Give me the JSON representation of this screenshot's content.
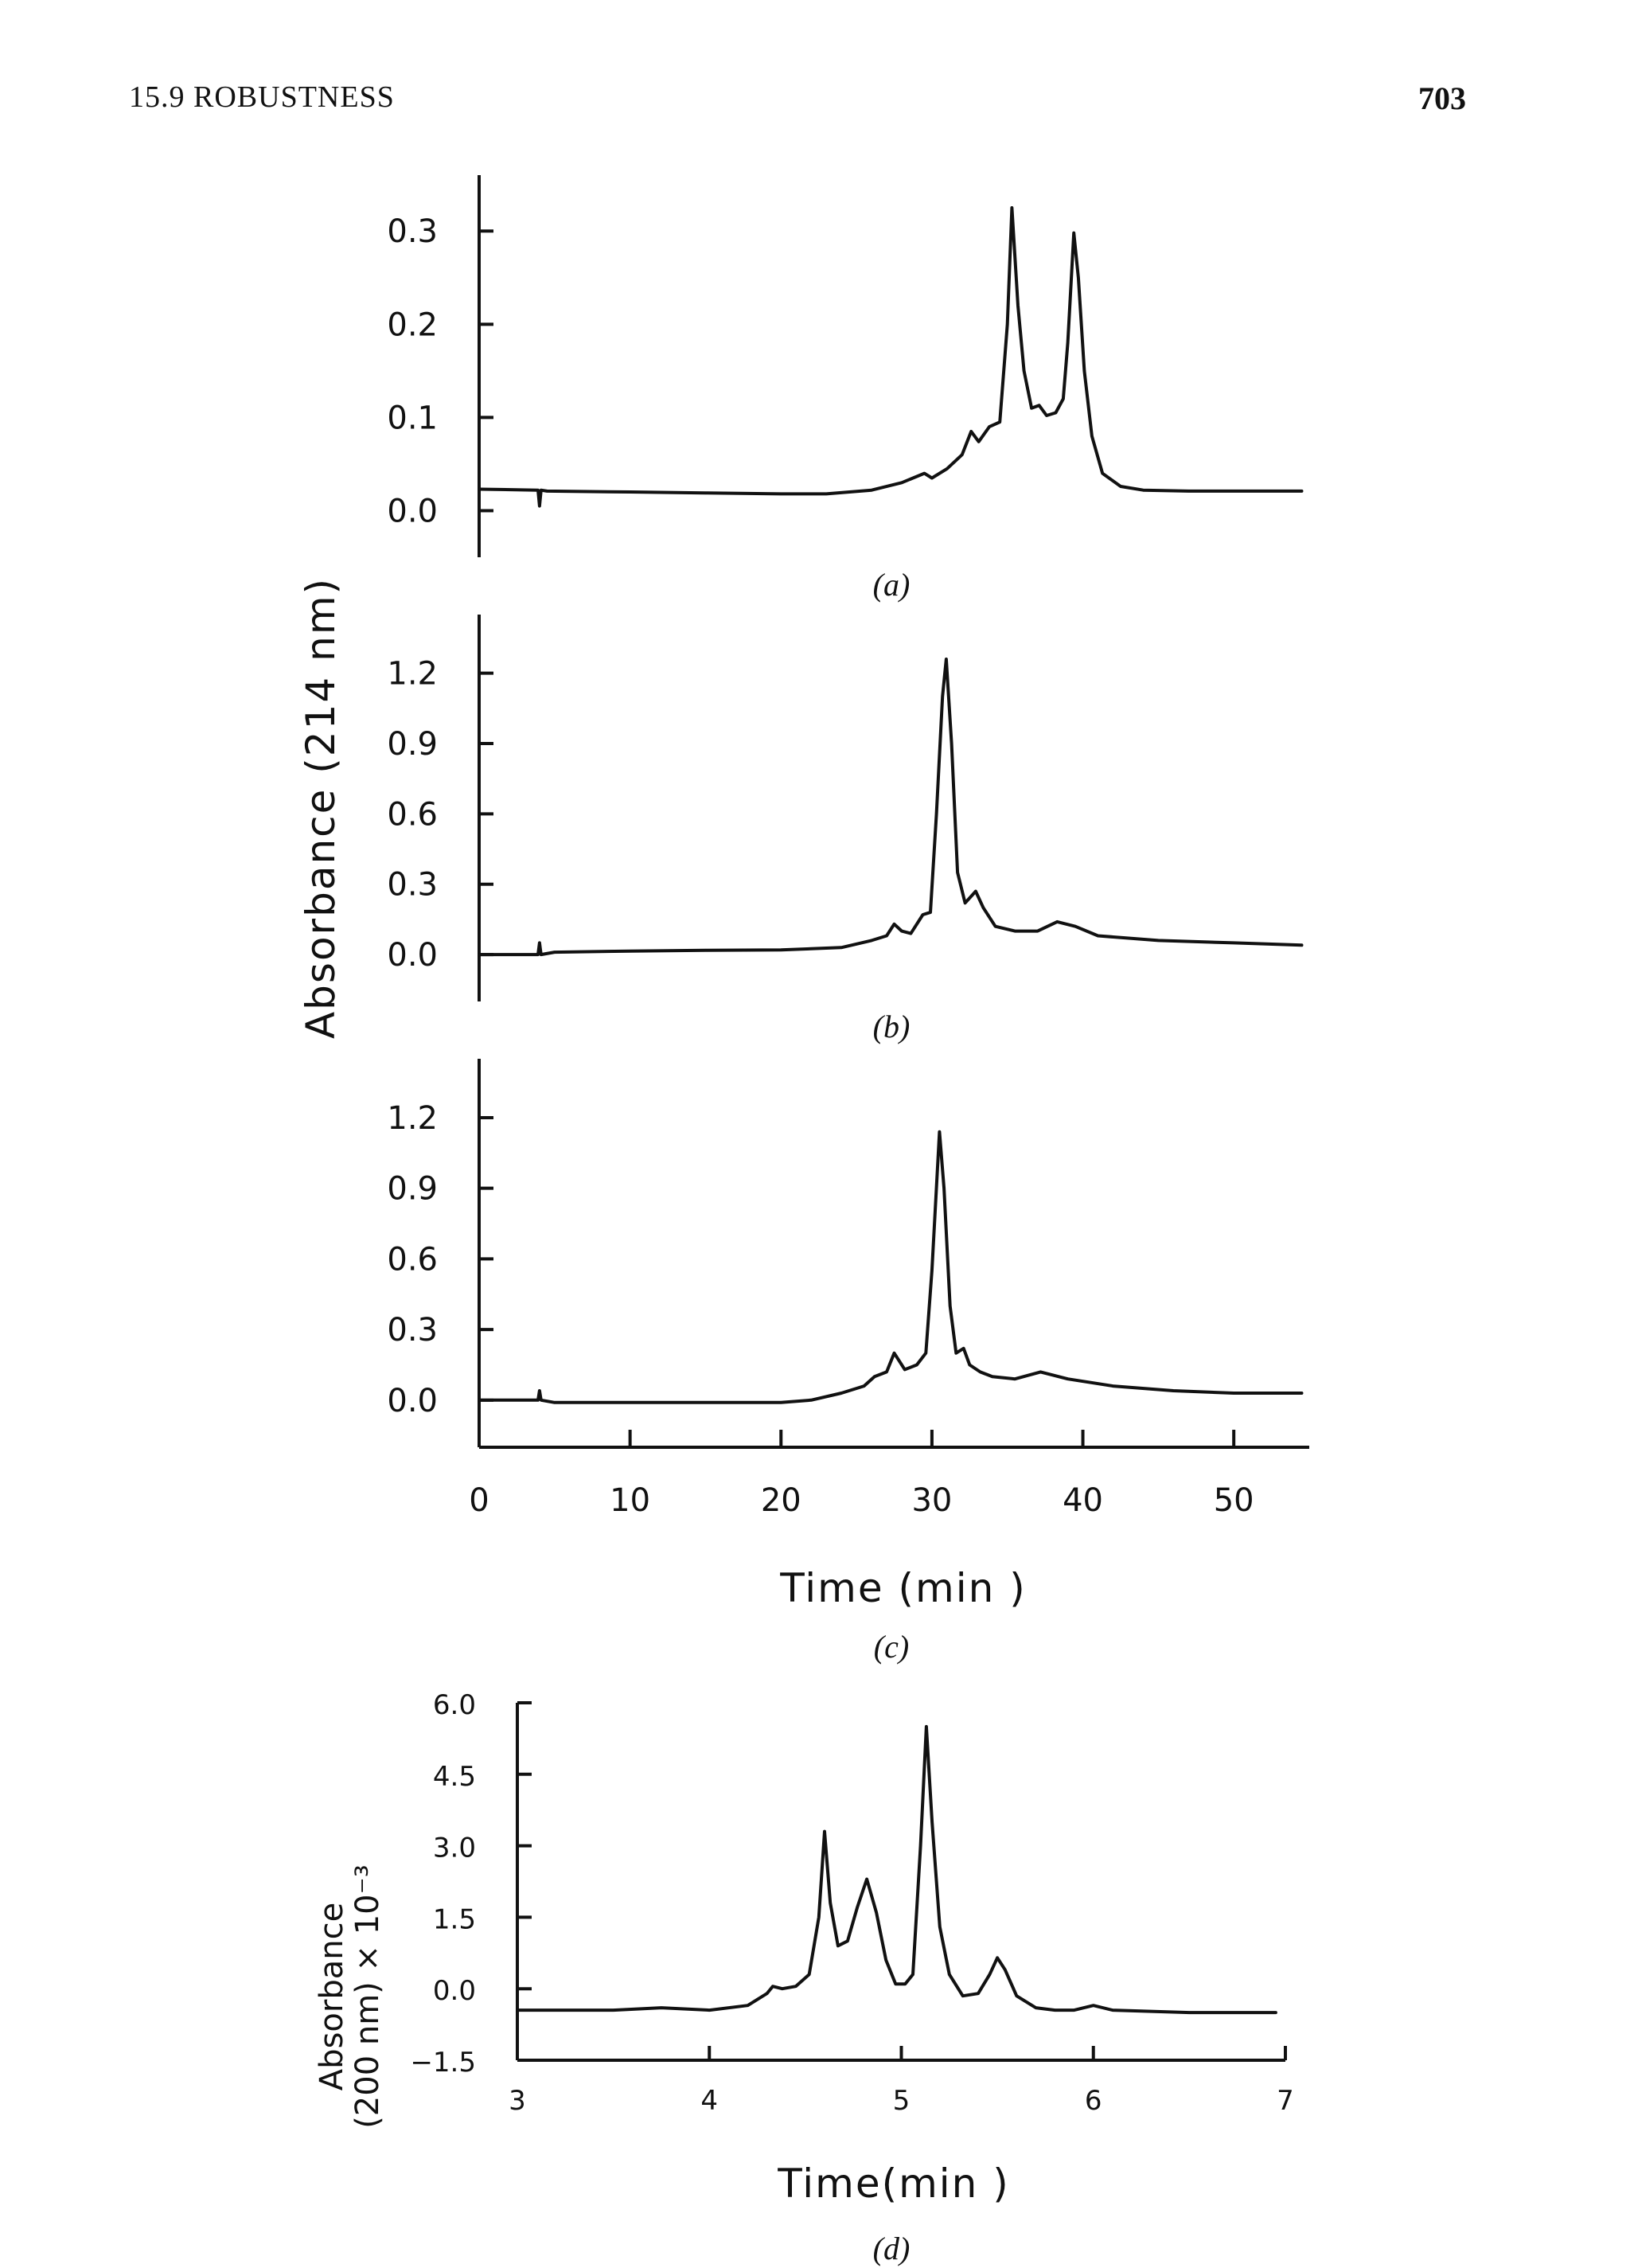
{
  "header": {
    "section_title": "15.9   ROBUSTNESS",
    "page_number": "703"
  },
  "shared_axis_titles": {
    "ylabel_abc": "Absorbance (214 nm)",
    "xlabel_abc": "Time  (min )"
  },
  "chart_data": [
    {
      "type": "line",
      "panel": "(a)",
      "xlim": [
        0,
        55
      ],
      "ylim": [
        -0.05,
        0.36
      ],
      "yticks": [
        0.0,
        0.1,
        0.2,
        0.3
      ],
      "ytick_labels": [
        "0.0",
        "0.1",
        "0.2",
        "0.3"
      ],
      "series": [
        {
          "x": [
            0,
            3.9,
            4.0,
            4.1,
            4.5,
            10,
            15,
            20,
            23,
            26,
            28,
            29.5,
            30,
            31,
            32,
            32.6,
            33.1,
            33.8,
            34.5,
            35.0,
            35.3,
            35.7,
            36.1,
            36.6,
            37.1,
            37.6,
            38.2,
            38.7,
            39.0,
            39.4,
            39.7,
            40.1,
            40.6,
            41.3,
            42.5,
            44,
            47,
            50,
            54.5
          ],
          "y": [
            0.023,
            0.022,
            0.005,
            0.022,
            0.021,
            0.02,
            0.019,
            0.018,
            0.018,
            0.022,
            0.03,
            0.04,
            0.035,
            0.045,
            0.06,
            0.085,
            0.074,
            0.09,
            0.095,
            0.2,
            0.325,
            0.22,
            0.15,
            0.11,
            0.113,
            0.102,
            0.105,
            0.12,
            0.18,
            0.298,
            0.25,
            0.15,
            0.08,
            0.04,
            0.026,
            0.022,
            0.021,
            0.021,
            0.021
          ]
        }
      ]
    },
    {
      "type": "line",
      "panel": "(b)",
      "xlim": [
        0,
        55
      ],
      "ylim": [
        -0.2,
        1.45
      ],
      "yticks": [
        0.0,
        0.3,
        0.6,
        0.9,
        1.2
      ],
      "ytick_labels": [
        "0.0",
        "0.3",
        "0.6",
        "0.9",
        "1.2"
      ],
      "series": [
        {
          "x": [
            0,
            3.9,
            4.0,
            4.1,
            5,
            10,
            15,
            20,
            24,
            26,
            27,
            27.5,
            28,
            28.6,
            29.4,
            29.9,
            30.3,
            30.7,
            30.95,
            31.3,
            31.7,
            32.2,
            32.9,
            33.4,
            34.2,
            35.5,
            37,
            38.3,
            39.5,
            41,
            45,
            50,
            54.5
          ],
          "y": [
            0.0,
            0.0,
            0.05,
            0.0,
            0.01,
            0.015,
            0.018,
            0.02,
            0.03,
            0.06,
            0.08,
            0.13,
            0.1,
            0.09,
            0.17,
            0.18,
            0.6,
            1.1,
            1.26,
            0.9,
            0.35,
            0.22,
            0.27,
            0.2,
            0.12,
            0.1,
            0.1,
            0.14,
            0.12,
            0.08,
            0.06,
            0.05,
            0.04
          ]
        }
      ]
    },
    {
      "type": "line",
      "panel": "(c)",
      "xlim": [
        0,
        55
      ],
      "ylim": [
        -0.2,
        1.45
      ],
      "yticks": [
        0.0,
        0.3,
        0.6,
        0.9,
        1.2
      ],
      "ytick_labels": [
        "0.0",
        "0.3",
        "0.6",
        "0.9",
        "1.2"
      ],
      "xticks": [
        0,
        10,
        20,
        30,
        40,
        50
      ],
      "xtick_labels": [
        "0",
        "10",
        "20",
        "30",
        "40",
        "50"
      ],
      "series": [
        {
          "x": [
            0,
            3.9,
            4.0,
            4.1,
            5,
            10,
            15,
            20,
            22,
            24,
            25.5,
            26.2,
            27,
            27.5,
            28.2,
            29,
            29.6,
            30.0,
            30.5,
            30.8,
            31.2,
            31.6,
            32.1,
            32.5,
            33.2,
            34,
            35.5,
            37.2,
            39,
            42,
            46,
            50,
            54.5
          ],
          "y": [
            0.0,
            0.0,
            0.04,
            0.0,
            -0.01,
            -0.01,
            -0.01,
            -0.01,
            0.0,
            0.03,
            0.06,
            0.1,
            0.12,
            0.2,
            0.13,
            0.15,
            0.2,
            0.55,
            1.14,
            0.9,
            0.4,
            0.2,
            0.22,
            0.15,
            0.12,
            0.1,
            0.09,
            0.12,
            0.09,
            0.06,
            0.04,
            0.03,
            0.03
          ]
        }
      ]
    },
    {
      "type": "line",
      "panel": "(d)",
      "xlabel": "Time(min )",
      "ylabel_lines": [
        "Absorbance",
        "(200 nm) × 10⁻³"
      ],
      "xlim": [
        3,
        7
      ],
      "ylim": [
        -1.5,
        6.0
      ],
      "yticks": [
        -1.5,
        0.0,
        1.5,
        3.0,
        4.5,
        6.0
      ],
      "ytick_labels": [
        "−1.5",
        "0.0",
        "1.5",
        "3.0",
        "4.5",
        "6.0"
      ],
      "xticks": [
        3,
        4,
        5,
        6,
        7
      ],
      "xtick_labels": [
        "3",
        "4",
        "5",
        "6",
        "7"
      ],
      "series": [
        {
          "x": [
            3.0,
            3.5,
            3.75,
            4.0,
            4.2,
            4.3,
            4.33,
            4.38,
            4.45,
            4.52,
            4.57,
            4.6,
            4.63,
            4.67,
            4.72,
            4.77,
            4.82,
            4.87,
            4.92,
            4.97,
            5.02,
            5.06,
            5.1,
            5.13,
            5.16,
            5.2,
            5.25,
            5.32,
            5.4,
            5.46,
            5.5,
            5.54,
            5.6,
            5.7,
            5.8,
            5.9,
            6.0,
            6.1,
            6.5,
            6.95
          ],
          "y": [
            -0.45,
            -0.45,
            -0.4,
            -0.45,
            -0.35,
            -0.1,
            0.05,
            0.0,
            0.05,
            0.3,
            1.5,
            3.3,
            1.8,
            0.9,
            1.0,
            1.7,
            2.3,
            1.6,
            0.6,
            0.1,
            0.1,
            0.3,
            3.0,
            5.5,
            3.5,
            1.3,
            0.3,
            -0.15,
            -0.1,
            0.3,
            0.65,
            0.4,
            -0.15,
            -0.4,
            -0.45,
            -0.45,
            -0.35,
            -0.45,
            -0.5,
            -0.5
          ]
        }
      ]
    }
  ]
}
